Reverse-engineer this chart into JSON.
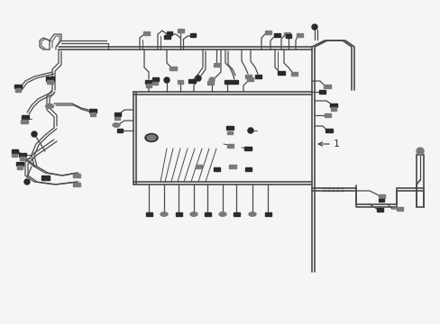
{
  "background_color": "#f5f5f5",
  "line_color": "#4a4a4a",
  "connector_dark": "#2a2a2a",
  "connector_light": "#7a7a7a",
  "lw_main": 1.2,
  "lw_branch": 0.9,
  "lw_thin": 0.7,
  "label_1": "1",
  "fig_width": 4.89,
  "fig_height": 3.6,
  "dpi": 100
}
